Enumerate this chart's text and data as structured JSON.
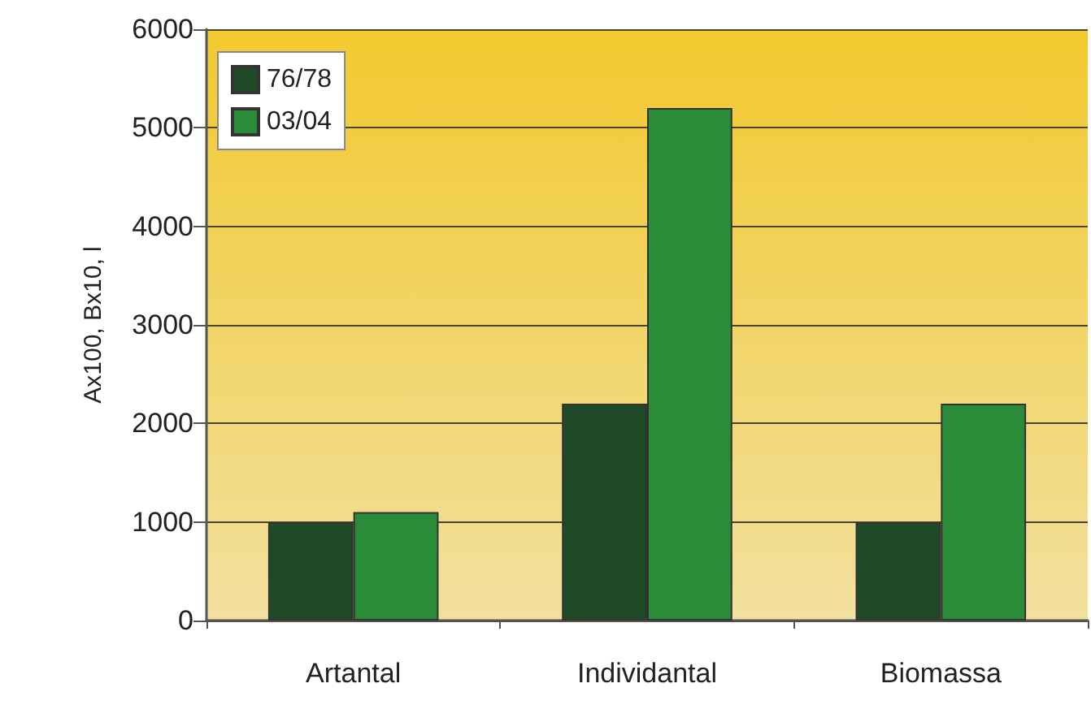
{
  "chart_data": {
    "type": "bar",
    "ylabel": "Ax100, Bx10, l",
    "categories": [
      "Artantal",
      "Individantal",
      "Biomassa"
    ],
    "series": [
      {
        "name": "76/78",
        "color": "#1e4a28",
        "values": [
          1000,
          2200,
          1000
        ]
      },
      {
        "name": "03/04",
        "color": "#2a8c38",
        "values": [
          1100,
          5200,
          2200
        ]
      }
    ],
    "ylim": [
      0,
      6000
    ],
    "yticks": [
      0,
      1000,
      2000,
      3000,
      4000,
      5000,
      6000
    ],
    "grid": "y",
    "legend": "top left"
  }
}
